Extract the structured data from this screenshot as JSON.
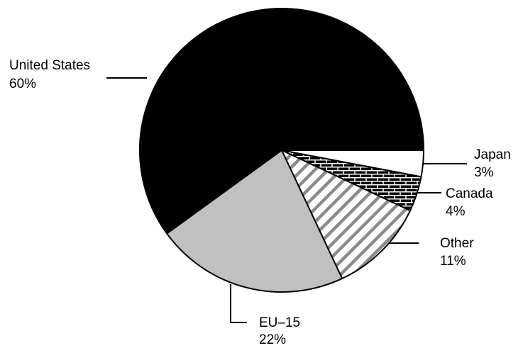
{
  "chart_data": {
    "type": "pie",
    "title": "",
    "slices": [
      {
        "name": "United States",
        "value": 60,
        "label": "60%",
        "color": "#000000",
        "pattern": "solid"
      },
      {
        "name": "EU-15",
        "value": 22,
        "label": "22%",
        "color": "#c0c0c0",
        "pattern": "solid"
      },
      {
        "name": "Other",
        "value": 11,
        "label": "11%",
        "color": "#ffffff",
        "pattern": "diagonal-stripes"
      },
      {
        "name": "Canada",
        "value": 4,
        "label": "4%",
        "color": "#ffffff",
        "pattern": "brick"
      },
      {
        "name": "Japan",
        "value": 3,
        "label": "3%",
        "color": "#ffffff",
        "pattern": "solid"
      }
    ],
    "label_text": {
      "us_name": "United States",
      "us_pct": "60%",
      "eu_name": "EU–15",
      "eu_pct": "22%",
      "other_name": "Other",
      "other_pct": "11%",
      "canada_name": "Canada",
      "canada_pct": "4%",
      "japan_name": "Japan",
      "japan_pct": "3%"
    }
  }
}
